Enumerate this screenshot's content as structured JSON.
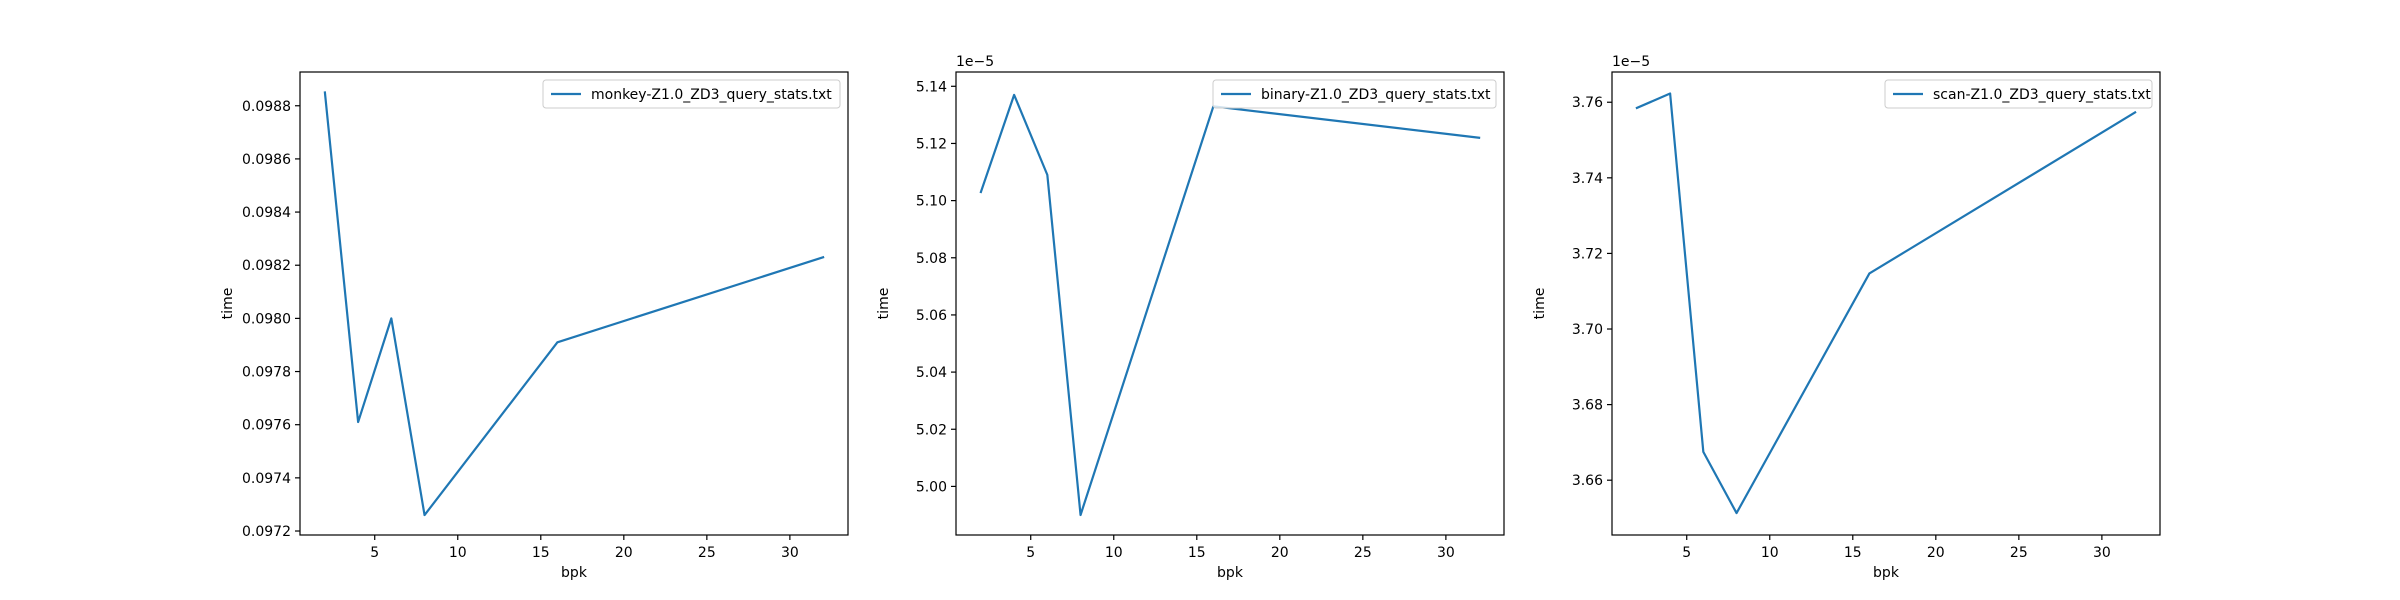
{
  "chart_data": [
    {
      "type": "line",
      "xlabel": "bpk",
      "ylabel": "time",
      "offset_text": "",
      "xlim": [
        0.5,
        33.5
      ],
      "ylim": [
        0.097185,
        0.098927
      ],
      "xticks": [
        5,
        10,
        15,
        20,
        25,
        30
      ],
      "yticks": [
        0.0972,
        0.0974,
        0.0976,
        0.0978,
        0.098,
        0.0982,
        0.0984,
        0.0986,
        0.0988
      ],
      "ytick_labels": [
        "0.0972",
        "0.0974",
        "0.0976",
        "0.0978",
        "0.0980",
        "0.0982",
        "0.0984",
        "0.0986",
        "0.0988"
      ],
      "grid": false,
      "legend_position": "top-right",
      "series": [
        {
          "name": "monkey-Z1.0_ZD3_query_stats.txt",
          "color": "#1f77b4",
          "x": [
            2,
            4,
            6,
            8,
            16,
            32
          ],
          "y": [
            0.09885,
            0.09761,
            0.098,
            0.09726,
            0.09791,
            0.09823
          ]
        }
      ]
    },
    {
      "type": "line",
      "xlabel": "bpk",
      "ylabel": "time",
      "offset_text": "1e−5",
      "xlim": [
        0.5,
        33.5
      ],
      "ylim": [
        4.983,
        5.145
      ],
      "xticks": [
        5,
        10,
        15,
        20,
        25,
        30
      ],
      "yticks": [
        5.0,
        5.02,
        5.04,
        5.06,
        5.08,
        5.1,
        5.12,
        5.14
      ],
      "ytick_labels": [
        "5.00",
        "5.02",
        "5.04",
        "5.06",
        "5.08",
        "5.10",
        "5.12",
        "5.14"
      ],
      "grid": false,
      "legend_position": "top-right",
      "series": [
        {
          "name": "binary-Z1.0_ZD3_query_stats.txt",
          "color": "#1f77b4",
          "x": [
            2,
            4,
            6,
            8,
            16,
            32
          ],
          "y": [
            5.103,
            5.137,
            5.109,
            4.99,
            5.133,
            5.122
          ]
        }
      ]
    },
    {
      "type": "line",
      "xlabel": "bpk",
      "ylabel": "time",
      "offset_text": "1e−5",
      "xlim": [
        0.5,
        33.5
      ],
      "ylim": [
        3.6455,
        3.768
      ],
      "xticks": [
        5,
        10,
        15,
        20,
        25,
        30
      ],
      "yticks": [
        3.66,
        3.68,
        3.7,
        3.72,
        3.74,
        3.76
      ],
      "ytick_labels": [
        "3.66",
        "3.68",
        "3.70",
        "3.72",
        "3.74",
        "3.76"
      ],
      "grid": false,
      "legend_position": "top-right",
      "series": [
        {
          "name": "scan-Z1.0_ZD3_query_stats.txt",
          "color": "#1f77b4",
          "x": [
            2,
            4,
            6,
            8,
            16,
            32
          ],
          "y": [
            3.7585,
            3.7623,
            3.6675,
            3.6513,
            3.7147,
            3.7573
          ]
        }
      ]
    }
  ]
}
